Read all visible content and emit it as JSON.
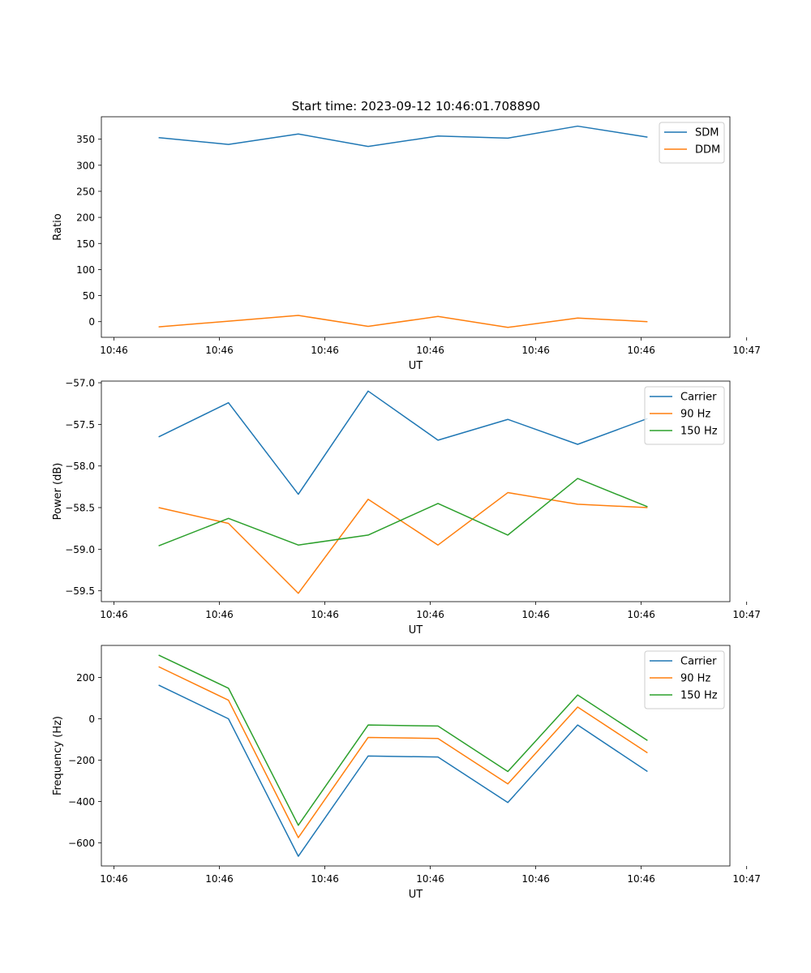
{
  "figure_title": "Start time: 2023-09-12 10:46:01.708890",
  "colors": {
    "blue": "#1f77b4",
    "orange": "#ff7f0e",
    "green": "#2ca02c"
  },
  "chart_data": [
    {
      "type": "line",
      "title": "Start time: 2023-09-12 10:46:01.708890",
      "xlabel": "UT",
      "ylabel": "Ratio",
      "x": [
        1,
        2,
        3,
        4,
        5,
        6,
        7,
        8
      ],
      "xlim": [
        0.18,
        9.18
      ],
      "xticks": [
        0.36,
        1.87,
        3.38,
        4.89,
        6.4,
        7.91,
        9.42
      ],
      "xtick_labels": [
        "10:46",
        "10:46",
        "10:46",
        "10:46",
        "10:46",
        "10:46",
        "10:47"
      ],
      "ylim": [
        -30,
        393
      ],
      "yticks": [
        0,
        50,
        100,
        150,
        200,
        250,
        300,
        350
      ],
      "ytick_labels": [
        "0",
        "50",
        "100",
        "150",
        "200",
        "250",
        "300",
        "350"
      ],
      "legend": "top-right",
      "series": [
        {
          "name": "SDM",
          "color": "#1f77b4",
          "values": [
            353,
            340,
            360,
            336,
            356,
            352,
            375,
            354
          ]
        },
        {
          "name": "DDM",
          "color": "#ff7f0e",
          "values": [
            -10,
            1,
            12,
            -9,
            10,
            -11,
            7,
            0
          ]
        }
      ]
    },
    {
      "type": "line",
      "title": "",
      "xlabel": "UT",
      "ylabel": "Power (dB)",
      "x": [
        1,
        2,
        3,
        4,
        5,
        6,
        7,
        8
      ],
      "xlim": [
        0.18,
        9.18
      ],
      "xticks": [
        0.36,
        1.87,
        3.38,
        4.89,
        6.4,
        7.91,
        9.42
      ],
      "xtick_labels": [
        "10:46",
        "10:46",
        "10:46",
        "10:46",
        "10:46",
        "10:46",
        "10:47"
      ],
      "ylim": [
        -59.63,
        -56.98
      ],
      "yticks": [
        -59.5,
        -59.0,
        -58.5,
        -58.0,
        -57.5,
        -57.0
      ],
      "ytick_labels": [
        "−59.5",
        "−59.0",
        "−58.5",
        "−58.0",
        "−57.5",
        "−57.0"
      ],
      "legend": "top-right",
      "series": [
        {
          "name": "Carrier",
          "color": "#1f77b4",
          "values": [
            -57.65,
            -57.24,
            -58.34,
            -57.1,
            -57.69,
            -57.44,
            -57.74,
            -57.43
          ]
        },
        {
          "name": "90 Hz",
          "color": "#ff7f0e",
          "values": [
            -58.5,
            -58.69,
            -59.53,
            -58.4,
            -58.95,
            -58.32,
            -58.46,
            -58.5
          ]
        },
        {
          "name": "150 Hz",
          "color": "#2ca02c",
          "values": [
            -58.96,
            -58.63,
            -58.95,
            -58.83,
            -58.45,
            -58.83,
            -58.15,
            -58.49
          ]
        }
      ]
    },
    {
      "type": "line",
      "title": "",
      "xlabel": "UT",
      "ylabel": "Frequency (Hz)",
      "x": [
        1,
        2,
        3,
        4,
        5,
        6,
        7,
        8
      ],
      "xlim": [
        0.18,
        9.18
      ],
      "xticks": [
        0.36,
        1.87,
        3.38,
        4.89,
        6.4,
        7.91,
        9.42
      ],
      "xtick_labels": [
        "10:46",
        "10:46",
        "10:46",
        "10:46",
        "10:46",
        "10:46",
        "10:47"
      ],
      "ylim": [
        -712,
        355
      ],
      "yticks": [
        -600,
        -400,
        -200,
        0,
        200
      ],
      "ytick_labels": [
        "−600",
        "−400",
        "−200",
        "0",
        "200"
      ],
      "legend": "top-right",
      "series": [
        {
          "name": "Carrier",
          "color": "#1f77b4",
          "values": [
            163,
            0,
            -665,
            -180,
            -185,
            -405,
            -30,
            -255
          ]
        },
        {
          "name": "90 Hz",
          "color": "#ff7f0e",
          "values": [
            252,
            90,
            -575,
            -90,
            -95,
            -315,
            57,
            -165
          ]
        },
        {
          "name": "150 Hz",
          "color": "#2ca02c",
          "values": [
            308,
            148,
            -515,
            -30,
            -35,
            -255,
            115,
            -105
          ]
        }
      ]
    }
  ]
}
